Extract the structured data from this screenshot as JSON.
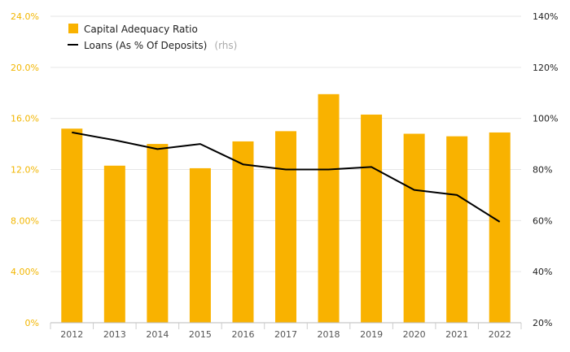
{
  "chart_data": {
    "type": "bar",
    "categories": [
      "2012",
      "2013",
      "2014",
      "2015",
      "2016",
      "2017",
      "2018",
      "2019",
      "2020",
      "2021",
      "2022"
    ],
    "series": [
      {
        "name": "Capital Adequacy Ratio",
        "type": "bar",
        "axis": "left",
        "color": "#F9B200",
        "values": [
          15.2,
          12.3,
          14.0,
          12.1,
          14.2,
          15.0,
          17.9,
          16.3,
          14.8,
          14.6,
          14.9
        ]
      },
      {
        "name": "Loans (As % Of Deposits)",
        "name_suffix": "(rhs)",
        "type": "line",
        "axis": "right",
        "color": "#000000",
        "values": [
          94.5,
          91.5,
          88.0,
          90.0,
          82.0,
          80.0,
          80.0,
          81.0,
          72.0,
          70.0,
          59.5
        ]
      }
    ],
    "y_left": {
      "ticks": [
        "0%",
        "4.00%",
        "8.00%",
        "12.0%",
        "16.0%",
        "20.0%",
        "24.0%"
      ],
      "range": [
        0,
        24
      ]
    },
    "y_right": {
      "ticks": [
        "20%",
        "40%",
        "60%",
        "80%",
        "100%",
        "120%",
        "140%"
      ],
      "range": [
        20,
        140
      ]
    },
    "grid": "horizontal",
    "legend_position": "top-left",
    "colors": {
      "bar": "#F9B200",
      "line": "#000000",
      "left_axis_text": "#F2B600",
      "grid": "#E6E6E6"
    }
  }
}
